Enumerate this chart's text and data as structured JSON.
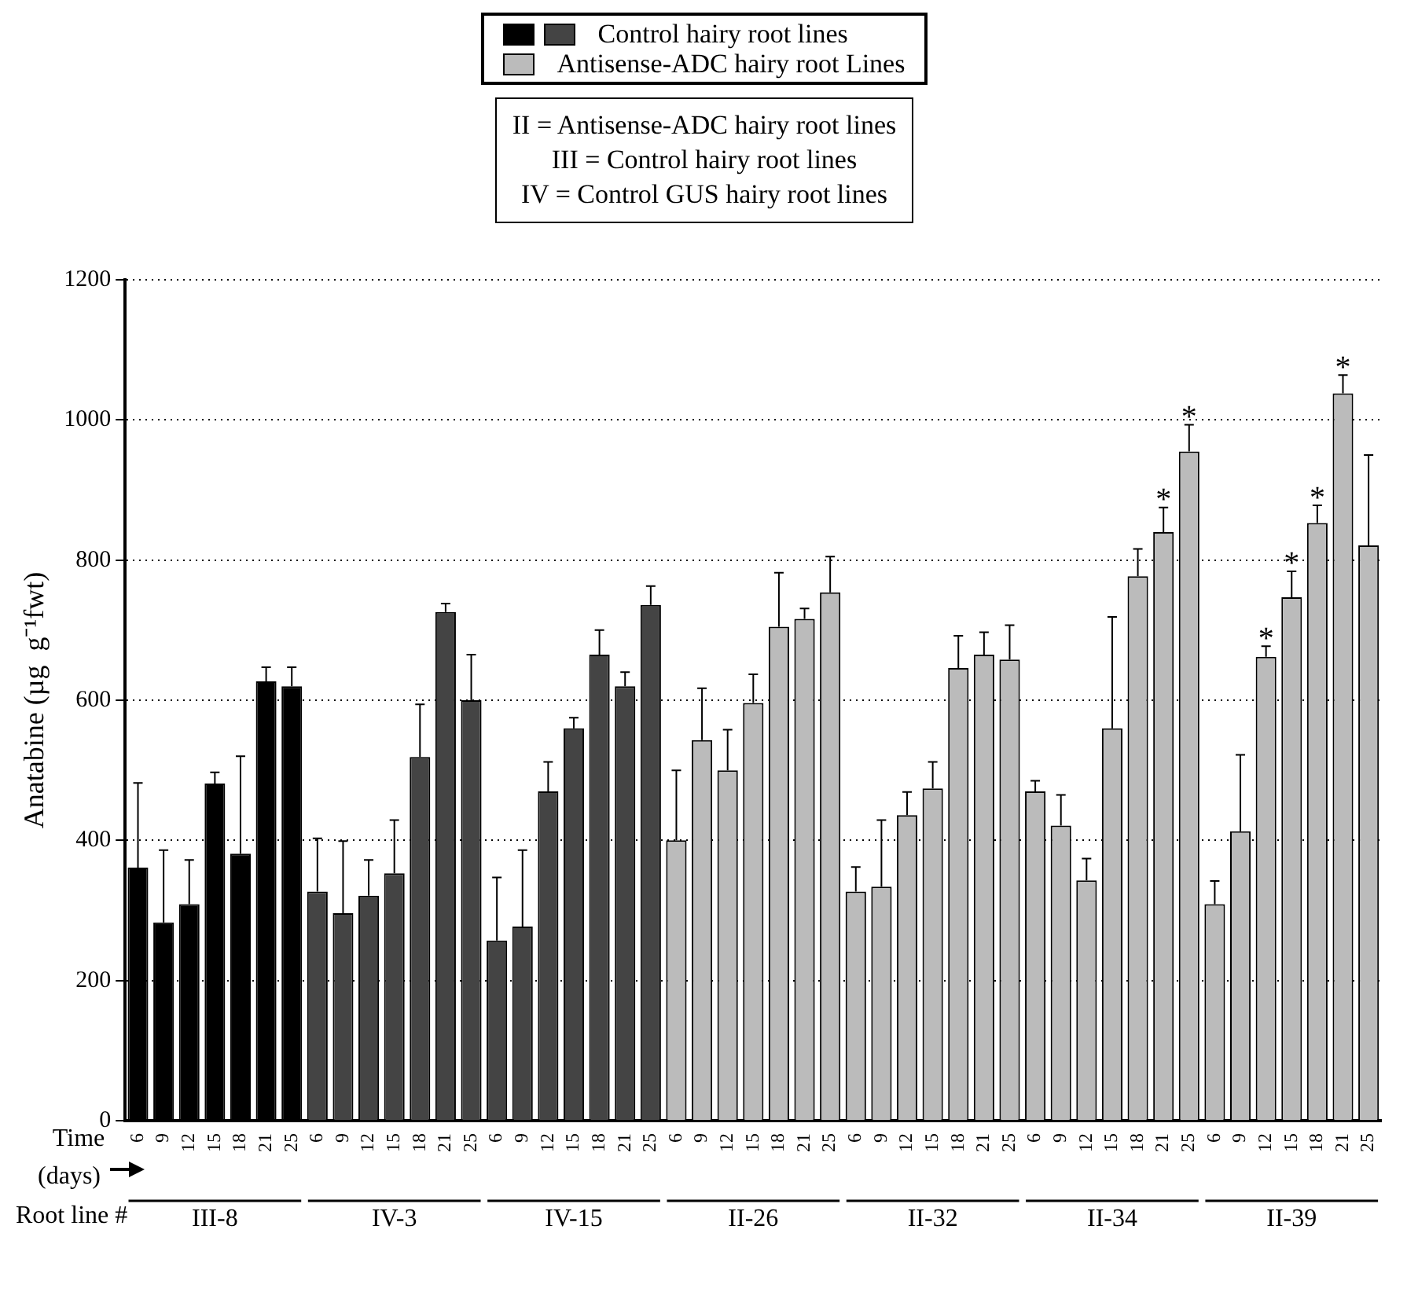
{
  "chart_data": {
    "type": "bar",
    "ylabel": "Anatabine (µg  g⁻¹fwt)",
    "xlabel": "Time (days)",
    "categories": [
      "6",
      "9",
      "12",
      "15",
      "18",
      "21",
      "25",
      "6",
      "9",
      "12",
      "15",
      "18",
      "21",
      "25",
      "6",
      "9",
      "12",
      "15",
      "18",
      "21",
      "25",
      "6",
      "9",
      "12",
      "15",
      "18",
      "21",
      "25",
      "6",
      "9",
      "12",
      "15",
      "18",
      "21",
      "25",
      "6",
      "9",
      "12",
      "15",
      "18",
      "21",
      "25",
      "6",
      "9",
      "12",
      "15",
      "18",
      "21",
      "25"
    ],
    "series": [
      {
        "name": "Control hairy root lines",
        "color": "#000000",
        "colors": [
          "#000000",
          "#000000",
          "#000000",
          "#000000",
          "#000000",
          "#000000",
          "#000000",
          "#444444",
          "#444444",
          "#444444",
          "#444444",
          "#444444",
          "#444444",
          "#444444",
          "#444444",
          "#444444",
          "#444444",
          "#444444",
          "#444444",
          "#444444",
          "#444444",
          null,
          null,
          null,
          null,
          null,
          null,
          null,
          null,
          null,
          null,
          null,
          null,
          null,
          null,
          null,
          null,
          null,
          null,
          null,
          null,
          null,
          null,
          null,
          null,
          null,
          null,
          null,
          null
        ],
        "values": [
          361,
          283,
          309,
          481,
          381,
          627,
          620,
          327,
          296,
          321,
          353,
          519,
          726,
          600,
          257,
          277,
          470,
          560,
          665,
          620,
          736,
          null,
          null,
          null,
          null,
          null,
          null,
          null,
          null,
          null,
          null,
          null,
          null,
          null,
          null,
          null,
          null,
          null,
          null,
          null,
          null,
          null,
          null,
          null,
          null,
          null,
          null,
          null,
          null
        ],
        "errors": [
          121,
          103,
          63,
          16,
          139,
          20,
          27,
          76,
          103,
          51,
          76,
          75,
          12,
          65,
          90,
          109,
          42,
          15,
          35,
          20,
          27,
          null,
          null,
          null,
          null,
          null,
          null,
          null,
          null,
          null,
          null,
          null,
          null,
          null,
          null,
          null,
          null,
          null,
          null,
          null,
          null,
          null,
          null,
          null,
          null,
          null,
          null,
          null,
          null
        ]
      },
      {
        "name": "Antisense-ADC hairy root Lines",
        "color": "#bbbbbb",
        "values": [
          null,
          null,
          null,
          null,
          null,
          null,
          null,
          null,
          null,
          null,
          null,
          null,
          null,
          null,
          null,
          null,
          null,
          null,
          null,
          null,
          null,
          400,
          543,
          500,
          596,
          705,
          716,
          754,
          327,
          334,
          436,
          474,
          646,
          665,
          658,
          470,
          421,
          343,
          560,
          777,
          840,
          955,
          309,
          413,
          662,
          747,
          853,
          1038,
          821
        ],
        "errors": [
          null,
          null,
          null,
          null,
          null,
          null,
          null,
          null,
          null,
          null,
          null,
          null,
          null,
          null,
          null,
          null,
          null,
          null,
          null,
          null,
          null,
          100,
          74,
          58,
          41,
          77,
          15,
          51,
          35,
          95,
          33,
          38,
          46,
          32,
          49,
          15,
          44,
          31,
          159,
          39,
          35,
          38,
          33,
          109,
          15,
          37,
          25,
          26,
          129
        ],
        "value_labels": [
          null,
          null,
          null,
          null,
          null,
          null,
          null,
          null,
          null,
          null,
          null,
          null,
          null,
          null,
          null,
          null,
          null,
          null,
          null,
          null,
          null,
          null,
          null,
          null,
          null,
          null,
          null,
          null,
          null,
          null,
          null,
          null,
          null,
          null,
          null,
          null,
          null,
          null,
          null,
          null,
          "*",
          "*",
          null,
          null,
          "*",
          "*",
          "*",
          "*",
          null
        ]
      }
    ],
    "ylim": [
      0,
      1200
    ],
    "yticks": [
      0,
      200,
      400,
      600,
      800,
      1000,
      1200
    ],
    "grid": "y",
    "legend": "top",
    "annotations": [
      "II = Antisense-ADC hairy root lines",
      "III = Control hairy root lines",
      "IV = Control GUS hairy root lines",
      "Root line #",
      "III-8",
      "IV-3",
      "IV-15",
      "II-26",
      "II-32",
      "II-34",
      "II-39"
    ]
  }
}
